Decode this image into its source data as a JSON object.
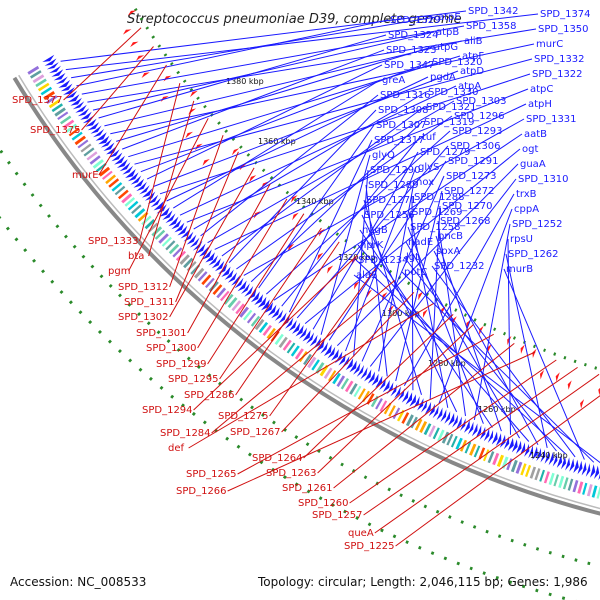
{
  "title": "Streptococcus pneumoniae D39, complete genome",
  "footer": {
    "accession": "Accession: NC_008533",
    "summary": "Topology: circular; Length: 2,046,115 bp; Genes: 1,986"
  },
  "colors": {
    "forward_gene": "#1a1aff",
    "reverse_gene": "#ff1a1a",
    "backbone": "#888888",
    "gc_dots": "#2a8a2a"
  },
  "ticks": [
    {
      "label": "1380 kbp",
      "kbp": 1380
    },
    {
      "label": "1360 kbp",
      "kbp": 1360
    },
    {
      "label": "1340 kbp",
      "kbp": 1340
    },
    {
      "label": "1320 kbp",
      "kbp": 1320
    },
    {
      "label": "1300 kbp",
      "kbp": 1300
    },
    {
      "label": "1280 kbp",
      "kbp": 1280
    },
    {
      "label": "1260 kbp",
      "kbp": 1260
    },
    {
      "label": "1240 kbp",
      "kbp": 1240
    }
  ],
  "blue_labels": [
    "SPD_1342",
    "SPD_1374",
    "atpE",
    "SPD_1329",
    "SPD_1358",
    "SPD_1350",
    "atpB",
    "SPD_1324",
    "aliB",
    "murC",
    "atpG",
    "SPD_1323",
    "atpF",
    "SPD_1332",
    "SPD_1320",
    "SPD_1347",
    "atpD",
    "SPD_1322",
    "pgdA",
    "greA",
    "atpA",
    "atpC",
    "SPD_1330",
    "SPD_1316",
    "SPD_1303",
    "atpH",
    "SPD_1321",
    "SPD_1308",
    "SPD_1296",
    "SPD_1331",
    "SPD_1319",
    "SPD_1307",
    "SPD_1293",
    "aatB",
    "tuf",
    "SPD_1317",
    "SPD_1306",
    "ogt",
    "SPD_1279",
    "glyQ",
    "SPD_1291",
    "guaA",
    "glyS",
    "SPD_1290",
    "SPD_1273",
    "SPD_1310",
    "nox",
    "SPD_1289",
    "SPD_1272",
    "trxB",
    "SPD_1288",
    "SPD_1271",
    "SPD_1270",
    "cppA",
    "SPD_1269",
    "SPD_1256",
    "SPD_1268",
    "SPD_1252",
    "SPD_1258",
    "nagB",
    "pncB",
    "rpsU",
    "nadE",
    "hprK",
    "spxA",
    "SPD_1262",
    "lgt",
    "SPD_1234",
    "SPD_1232",
    "murB",
    "potC",
    "alaS"
  ],
  "red_labels": [
    "SPD_1377",
    "SPD_1375",
    "murE",
    "SPD_1333",
    "bta",
    "pgm",
    "SPD_1312",
    "SPD_1311",
    "SPD_1302",
    "SPD_1301",
    "SPD_1300",
    "SPD_1299",
    "SPD_1295",
    "SPD_1286",
    "SPD_1294",
    "SPD_1275",
    "SPD_1284",
    "SPD_1267",
    "def",
    "SPD_1264",
    "SPD_1263",
    "SPD_1265",
    "SPD_1261",
    "SPD_1266",
    "SPD_1260",
    "SPD_1257",
    "queA",
    "SPD_1225"
  ]
}
